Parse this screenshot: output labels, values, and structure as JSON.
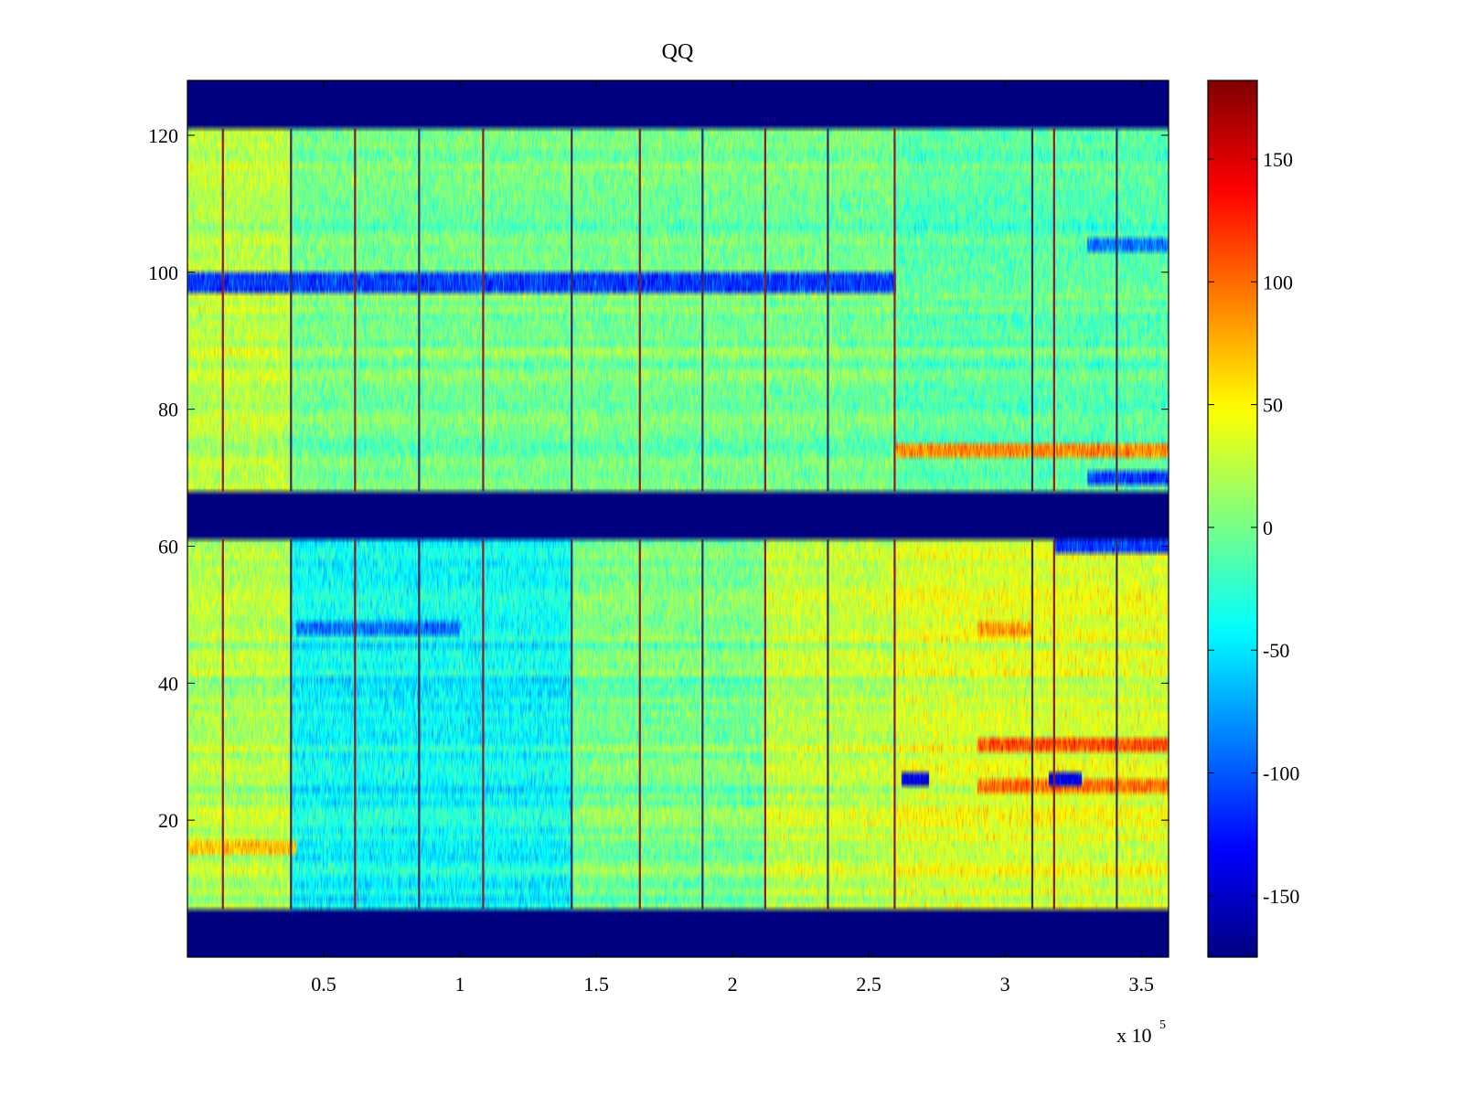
{
  "chart_data": {
    "type": "heatmap",
    "title": "QQ",
    "xlabel": "",
    "ylabel": "",
    "xlim": [
      0,
      360000
    ],
    "ylim": [
      0,
      128
    ],
    "x_ticks": [
      50000,
      100000,
      150000,
      200000,
      250000,
      300000,
      350000
    ],
    "x_tick_labels": [
      "0.5",
      "1",
      "1.5",
      "2",
      "2.5",
      "3",
      "3.5"
    ],
    "x_multiplier": {
      "base": "x 10",
      "exponent": "5"
    },
    "y_ticks": [
      20,
      40,
      60,
      80,
      100,
      120
    ],
    "y_tick_labels": [
      "20",
      "40",
      "60",
      "80",
      "100",
      "120"
    ],
    "colorbar": {
      "range": [
        -175,
        182
      ],
      "ticks": [
        -150,
        -100,
        -50,
        0,
        50,
        100,
        150
      ],
      "tick_labels": [
        "-150",
        "-100",
        "-50",
        "0",
        "50",
        "100",
        "150"
      ],
      "colormap": "jet"
    },
    "masked_rows_value": -175,
    "masked_bands": [
      {
        "y_from": 0,
        "y_to": 7
      },
      {
        "y_from": 61,
        "y_to": 68
      },
      {
        "y_from": 121,
        "y_to": 128
      }
    ],
    "vertical_event_lines_x": [
      13000,
      38000,
      61500,
      85000,
      108500,
      141000,
      166000,
      189000,
      212000,
      235000,
      259500,
      310000,
      318000,
      341000
    ],
    "regions": [
      {
        "x_from": 0,
        "x_to": 38000,
        "y_from": 7,
        "y_to": 61,
        "mean_value": 20
      },
      {
        "x_from": 38000,
        "x_to": 141000,
        "y_from": 7,
        "y_to": 61,
        "mean_value": -40
      },
      {
        "x_from": 141000,
        "x_to": 212000,
        "y_from": 7,
        "y_to": 61,
        "mean_value": 0
      },
      {
        "x_from": 212000,
        "x_to": 260000,
        "y_from": 7,
        "y_to": 61,
        "mean_value": 25
      },
      {
        "x_from": 260000,
        "x_to": 360000,
        "y_from": 7,
        "y_to": 61,
        "mean_value": 35
      },
      {
        "x_from": 0,
        "x_to": 38000,
        "y_from": 68,
        "y_to": 121,
        "mean_value": 25
      },
      {
        "x_from": 38000,
        "x_to": 260000,
        "y_from": 68,
        "y_to": 121,
        "mean_value": 0
      },
      {
        "x_from": 260000,
        "x_to": 360000,
        "y_from": 68,
        "y_to": 121,
        "mean_value": -10
      }
    ],
    "row_stripes": [
      {
        "y": 98.5,
        "x_from": 0,
        "x_to": 260000,
        "value": -110
      },
      {
        "y": 74,
        "x_from": 260000,
        "x_to": 360000,
        "value": 90
      },
      {
        "y": 31,
        "x_from": 290000,
        "x_to": 360000,
        "value": 110
      },
      {
        "y": 25,
        "x_from": 290000,
        "x_to": 360000,
        "value": 100
      },
      {
        "y": 48,
        "x_from": 40000,
        "x_to": 100000,
        "value": -90
      },
      {
        "y": 48,
        "x_from": 290000,
        "x_to": 310000,
        "value": 80
      },
      {
        "y": 26,
        "x_from": 262000,
        "x_to": 272000,
        "value": -140
      },
      {
        "y": 26,
        "x_from": 316000,
        "x_to": 328000,
        "value": -140
      },
      {
        "y": 60,
        "x_from": 318000,
        "x_to": 360000,
        "value": -110
      },
      {
        "y": 104,
        "x_from": 330000,
        "x_to": 360000,
        "value": -90
      },
      {
        "y": 70,
        "x_from": 330000,
        "x_to": 360000,
        "value": -110
      },
      {
        "y": 16,
        "x_from": 0,
        "x_to": 40000,
        "value": 70
      }
    ]
  }
}
